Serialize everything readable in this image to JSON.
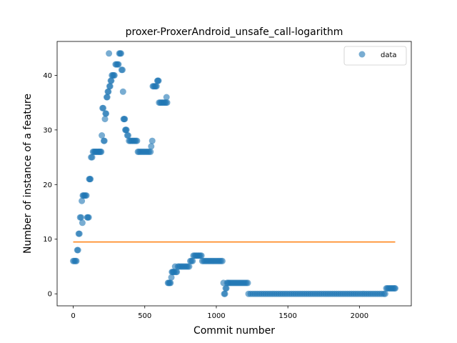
{
  "chart_data": {
    "type": "scatter",
    "title": "proxer-ProxerAndroid_unsafe_call-logarithm",
    "xlabel": "Commit number",
    "ylabel": "Number of instance of a feature",
    "xlim": [
      -112.5,
      2362.5
    ],
    "ylim": [
      -2.2,
      46.2
    ],
    "xticks": [
      0,
      500,
      1000,
      1500,
      2000
    ],
    "yticks": [
      0,
      10,
      20,
      30,
      40
    ],
    "grid": false,
    "legend": {
      "position": "top-right",
      "entries": [
        "data"
      ]
    },
    "colors": {
      "scatter": "#1f77b4",
      "line": "#ff7f0e"
    },
    "series": [
      {
        "name": "data",
        "kind": "scatter",
        "points": [
          [
            0,
            6
          ],
          [
            8,
            6
          ],
          [
            15,
            6
          ],
          [
            22,
            6
          ],
          [
            28,
            8
          ],
          [
            33,
            8
          ],
          [
            38,
            11
          ],
          [
            43,
            11
          ],
          [
            48,
            14
          ],
          [
            55,
            14
          ],
          [
            60,
            17
          ],
          [
            64,
            13
          ],
          [
            67,
            18
          ],
          [
            72,
            18
          ],
          [
            78,
            18
          ],
          [
            85,
            18
          ],
          [
            92,
            18
          ],
          [
            98,
            14
          ],
          [
            102,
            14
          ],
          [
            108,
            14
          ],
          [
            112,
            21
          ],
          [
            116,
            21
          ],
          [
            120,
            21
          ],
          [
            125,
            25
          ],
          [
            132,
            25
          ],
          [
            138,
            26
          ],
          [
            145,
            26
          ],
          [
            152,
            26
          ],
          [
            158,
            26
          ],
          [
            165,
            26
          ],
          [
            172,
            26
          ],
          [
            178,
            26
          ],
          [
            184,
            26
          ],
          [
            190,
            26
          ],
          [
            196,
            26
          ],
          [
            200,
            29
          ],
          [
            205,
            34
          ],
          [
            210,
            34
          ],
          [
            214,
            28
          ],
          [
            218,
            28
          ],
          [
            222,
            32
          ],
          [
            226,
            33
          ],
          [
            230,
            33
          ],
          [
            234,
            36
          ],
          [
            238,
            36
          ],
          [
            242,
            37
          ],
          [
            246,
            37
          ],
          [
            250,
            44
          ],
          [
            254,
            38
          ],
          [
            258,
            38
          ],
          [
            262,
            39
          ],
          [
            266,
            39
          ],
          [
            270,
            40
          ],
          [
            276,
            40
          ],
          [
            282,
            40
          ],
          [
            288,
            40
          ],
          [
            296,
            42
          ],
          [
            302,
            42
          ],
          [
            310,
            42
          ],
          [
            316,
            42
          ],
          [
            322,
            44
          ],
          [
            328,
            44
          ],
          [
            334,
            44
          ],
          [
            338,
            41
          ],
          [
            344,
            41
          ],
          [
            348,
            37
          ],
          [
            352,
            32
          ],
          [
            356,
            32
          ],
          [
            360,
            32
          ],
          [
            364,
            30
          ],
          [
            368,
            30
          ],
          [
            372,
            30
          ],
          [
            378,
            29
          ],
          [
            384,
            29
          ],
          [
            390,
            28
          ],
          [
            398,
            28
          ],
          [
            406,
            28
          ],
          [
            414,
            28
          ],
          [
            422,
            28
          ],
          [
            430,
            28
          ],
          [
            438,
            28
          ],
          [
            446,
            28
          ],
          [
            452,
            26
          ],
          [
            460,
            26
          ],
          [
            470,
            26
          ],
          [
            480,
            26
          ],
          [
            490,
            26
          ],
          [
            500,
            26
          ],
          [
            510,
            26
          ],
          [
            520,
            26
          ],
          [
            530,
            26
          ],
          [
            540,
            26
          ],
          [
            545,
            27
          ],
          [
            552,
            28
          ],
          [
            556,
            38
          ],
          [
            562,
            38
          ],
          [
            570,
            38
          ],
          [
            576,
            38
          ],
          [
            582,
            38
          ],
          [
            588,
            39
          ],
          [
            592,
            39
          ],
          [
            596,
            39
          ],
          [
            600,
            35
          ],
          [
            608,
            35
          ],
          [
            616,
            35
          ],
          [
            624,
            35
          ],
          [
            632,
            35
          ],
          [
            640,
            35
          ],
          [
            648,
            35
          ],
          [
            652,
            36
          ],
          [
            656,
            35
          ],
          [
            662,
            2
          ],
          [
            668,
            2
          ],
          [
            674,
            2
          ],
          [
            680,
            2
          ],
          [
            686,
            3
          ],
          [
            690,
            4
          ],
          [
            695,
            4
          ],
          [
            700,
            4
          ],
          [
            706,
            4
          ],
          [
            712,
            5
          ],
          [
            718,
            4
          ],
          [
            724,
            4
          ],
          [
            732,
            5
          ],
          [
            740,
            5
          ],
          [
            750,
            5
          ],
          [
            760,
            5
          ],
          [
            770,
            5
          ],
          [
            780,
            5
          ],
          [
            790,
            5
          ],
          [
            800,
            5
          ],
          [
            810,
            5
          ],
          [
            818,
            6
          ],
          [
            826,
            6
          ],
          [
            834,
            6
          ],
          [
            840,
            7
          ],
          [
            848,
            7
          ],
          [
            856,
            7
          ],
          [
            864,
            7
          ],
          [
            872,
            7
          ],
          [
            880,
            7
          ],
          [
            888,
            7
          ],
          [
            896,
            7
          ],
          [
            902,
            6
          ],
          [
            912,
            6
          ],
          [
            922,
            6
          ],
          [
            932,
            6
          ],
          [
            942,
            6
          ],
          [
            952,
            6
          ],
          [
            962,
            6
          ],
          [
            972,
            6
          ],
          [
            982,
            6
          ],
          [
            992,
            6
          ],
          [
            1002,
            6
          ],
          [
            1012,
            6
          ],
          [
            1022,
            6
          ],
          [
            1032,
            6
          ],
          [
            1042,
            6
          ],
          [
            1050,
            2
          ],
          [
            1055,
            0
          ],
          [
            1060,
            0
          ],
          [
            1065,
            1
          ],
          [
            1070,
            1
          ],
          [
            1075,
            2
          ],
          [
            1082,
            2
          ],
          [
            1090,
            2
          ],
          [
            1100,
            2
          ],
          [
            1110,
            2
          ],
          [
            1120,
            2
          ],
          [
            1130,
            2
          ],
          [
            1140,
            2
          ],
          [
            1150,
            2
          ],
          [
            1160,
            2
          ],
          [
            1170,
            2
          ],
          [
            1180,
            2
          ],
          [
            1190,
            2
          ],
          [
            1200,
            2
          ],
          [
            1210,
            2
          ],
          [
            1220,
            2
          ],
          [
            1225,
            0
          ],
          [
            1240,
            0
          ],
          [
            1255,
            0
          ],
          [
            1270,
            0
          ],
          [
            1285,
            0
          ],
          [
            1300,
            0
          ],
          [
            1315,
            0
          ],
          [
            1330,
            0
          ],
          [
            1345,
            0
          ],
          [
            1360,
            0
          ],
          [
            1375,
            0
          ],
          [
            1390,
            0
          ],
          [
            1405,
            0
          ],
          [
            1420,
            0
          ],
          [
            1435,
            0
          ],
          [
            1450,
            0
          ],
          [
            1465,
            0
          ],
          [
            1480,
            0
          ],
          [
            1495,
            0
          ],
          [
            1510,
            0
          ],
          [
            1525,
            0
          ],
          [
            1540,
            0
          ],
          [
            1555,
            0
          ],
          [
            1570,
            0
          ],
          [
            1585,
            0
          ],
          [
            1600,
            0
          ],
          [
            1615,
            0
          ],
          [
            1630,
            0
          ],
          [
            1645,
            0
          ],
          [
            1660,
            0
          ],
          [
            1675,
            0
          ],
          [
            1690,
            0
          ],
          [
            1705,
            0
          ],
          [
            1720,
            0
          ],
          [
            1735,
            0
          ],
          [
            1750,
            0
          ],
          [
            1765,
            0
          ],
          [
            1780,
            0
          ],
          [
            1795,
            0
          ],
          [
            1810,
            0
          ],
          [
            1825,
            0
          ],
          [
            1840,
            0
          ],
          [
            1855,
            0
          ],
          [
            1870,
            0
          ],
          [
            1885,
            0
          ],
          [
            1900,
            0
          ],
          [
            1915,
            0
          ],
          [
            1930,
            0
          ],
          [
            1945,
            0
          ],
          [
            1960,
            0
          ],
          [
            1975,
            0
          ],
          [
            1990,
            0
          ],
          [
            2005,
            0
          ],
          [
            2020,
            0
          ],
          [
            2035,
            0
          ],
          [
            2050,
            0
          ],
          [
            2065,
            0
          ],
          [
            2080,
            0
          ],
          [
            2095,
            0
          ],
          [
            2110,
            0
          ],
          [
            2125,
            0
          ],
          [
            2140,
            0
          ],
          [
            2155,
            0
          ],
          [
            2170,
            0
          ],
          [
            2180,
            0
          ],
          [
            2188,
            1
          ],
          [
            2196,
            1
          ],
          [
            2204,
            1
          ],
          [
            2212,
            1
          ],
          [
            2220,
            1
          ],
          [
            2228,
            1
          ],
          [
            2236,
            1
          ],
          [
            2244,
            1
          ],
          [
            2250,
            1
          ]
        ]
      },
      {
        "name": "",
        "kind": "line",
        "points": [
          [
            0,
            9.5
          ],
          [
            2250,
            9.5
          ]
        ]
      }
    ]
  }
}
